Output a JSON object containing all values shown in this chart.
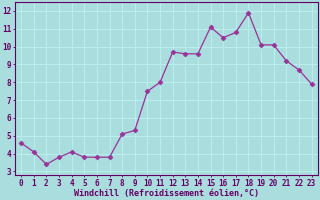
{
  "x": [
    0,
    1,
    2,
    3,
    4,
    5,
    6,
    7,
    8,
    9,
    10,
    11,
    12,
    13,
    14,
    15,
    16,
    17,
    18,
    19,
    20,
    21,
    22,
    23
  ],
  "y": [
    4.6,
    4.1,
    3.4,
    3.8,
    4.1,
    3.8,
    3.8,
    3.8,
    5.1,
    5.3,
    7.5,
    8.0,
    9.7,
    9.6,
    9.6,
    11.1,
    10.5,
    10.8,
    11.9,
    10.1,
    10.1,
    9.2,
    8.7,
    7.9
  ],
  "x_labels": [
    "0",
    "1",
    "2",
    "3",
    "4",
    "5",
    "6",
    "7",
    "8",
    "9",
    "10",
    "11",
    "12",
    "13",
    "14",
    "15",
    "16",
    "17",
    "18",
    "19",
    "20",
    "21",
    "22",
    "23"
  ],
  "xlabel": "Windchill (Refroidissement éolien,°C)",
  "ylim": [
    2.8,
    12.5
  ],
  "yticks": [
    3,
    4,
    5,
    6,
    7,
    8,
    9,
    10,
    11,
    12
  ],
  "line_color": "#993399",
  "marker": "D",
  "markersize": 2.5,
  "bg_color": "#aadddd",
  "grid_color": "#bbeeee",
  "font_color": "#660066",
  "font_family": "monospace",
  "tick_fontsize": 5.5,
  "xlabel_fontsize": 6.0
}
